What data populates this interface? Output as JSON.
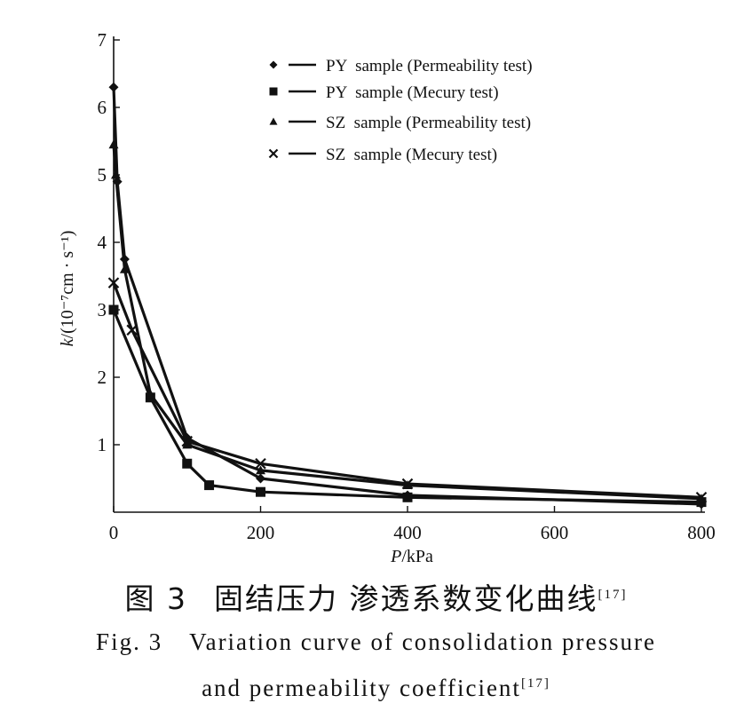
{
  "chart_data": {
    "type": "line",
    "xlabel": "P/kPa",
    "xlabel_italic": "P",
    "xlabel_unit": "/kPa",
    "ylabel": "k/(10⁻⁷cm · s⁻¹)",
    "ylabel_italic": "k",
    "ylabel_unit": "/(10⁻⁷cm · s⁻¹)",
    "xlim": [
      0,
      800
    ],
    "ylim": [
      0,
      7
    ],
    "x_ticks": [
      0,
      200,
      400,
      600,
      800
    ],
    "y_ticks": [
      1,
      2,
      3,
      4,
      5,
      6,
      7
    ],
    "x_tick_labels": [
      "0",
      "200",
      "400",
      "600",
      "800"
    ],
    "y_tick_labels": [
      "1",
      "2",
      "3",
      "4",
      "5",
      "6",
      "7"
    ],
    "grid": false,
    "legend_position": "top-right",
    "series": [
      {
        "name": "PY  sample (Permeability test)",
        "marker": "diamond",
        "points": [
          [
            0,
            6.3
          ],
          [
            5,
            4.9
          ],
          [
            15,
            3.75
          ],
          [
            100,
            1.1
          ],
          [
            200,
            0.5
          ],
          [
            400,
            0.25
          ],
          [
            800,
            0.12
          ]
        ]
      },
      {
        "name": "PY  sample (Mecury test)",
        "marker": "square",
        "points": [
          [
            0,
            3.0
          ],
          [
            50,
            1.7
          ],
          [
            100,
            0.72
          ],
          [
            130,
            0.4
          ],
          [
            200,
            0.3
          ],
          [
            400,
            0.22
          ],
          [
            800,
            0.15
          ]
        ]
      },
      {
        "name": "SZ  sample (Permeability test)",
        "marker": "triangle",
        "points": [
          [
            0,
            5.45
          ],
          [
            3,
            5.0
          ],
          [
            15,
            3.6
          ],
          [
            50,
            1.75
          ],
          [
            100,
            1.0
          ],
          [
            200,
            0.62
          ],
          [
            400,
            0.4
          ],
          [
            800,
            0.2
          ]
        ]
      },
      {
        "name": "SZ  sample (Mecury test)",
        "marker": "cross",
        "points": [
          [
            0,
            3.4
          ],
          [
            25,
            2.7
          ],
          [
            100,
            1.05
          ],
          [
            200,
            0.72
          ],
          [
            400,
            0.42
          ],
          [
            800,
            0.22
          ]
        ]
      }
    ]
  },
  "caption": {
    "cn_label": "图 3",
    "cn_text": "固结压力 渗透系数变化曲线",
    "cn_ref": "[17]",
    "en_label": "Fig. 3",
    "en_line1": "Variation curve of consolidation pressure",
    "en_line2": "and permeability coefficient",
    "en_ref": "[17]"
  }
}
